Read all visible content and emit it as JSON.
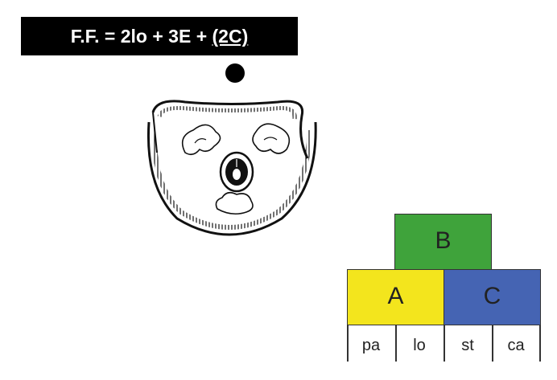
{
  "formula": {
    "prefix": "F.F. = 2lo + 3E + ",
    "underlined": "(2C)"
  },
  "abc_model": {
    "b_label": "B",
    "a_label": "A",
    "c_label": "C",
    "whorls": [
      "pa",
      "lo",
      "st",
      "ca"
    ],
    "colors": {
      "a": "#f3e51d",
      "b": "#3fa33b",
      "c": "#4564b3"
    }
  }
}
